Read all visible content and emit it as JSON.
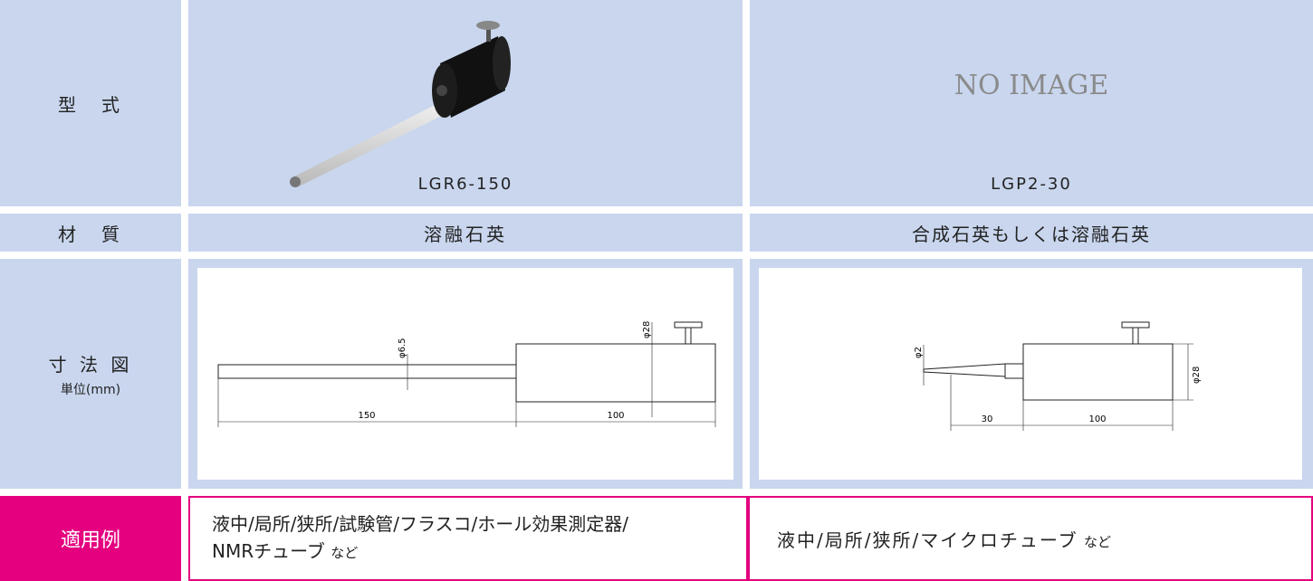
{
  "table": {
    "model": {
      "label": "型　式",
      "items": [
        {
          "name": "LGR6-150"
        },
        {
          "name": "LGP2-30",
          "placeholder": "NO IMAGE"
        }
      ]
    },
    "material": {
      "label": "材　質",
      "items": [
        "溶融石英",
        "合成石英もしくは溶融石英"
      ]
    },
    "dimensions": {
      "label": "寸 法 図",
      "unit": "単位(mm)",
      "drawings": [
        {
          "dims": [
            "φ6.5",
            "φ28",
            "150",
            "100"
          ]
        },
        {
          "dims": [
            "φ2",
            "φ28",
            "30",
            "100"
          ]
        }
      ]
    },
    "applications": {
      "label": "適用例",
      "items": [
        {
          "lines": [
            "液中/局所/狭所/試験管/フラスコ/ホール効果測定器/",
            "NMRチューブ"
          ],
          "suffix": "など"
        },
        {
          "lines": [
            "液中/局所/狭所/マイクロチューブ"
          ],
          "suffix": "など"
        }
      ]
    }
  }
}
